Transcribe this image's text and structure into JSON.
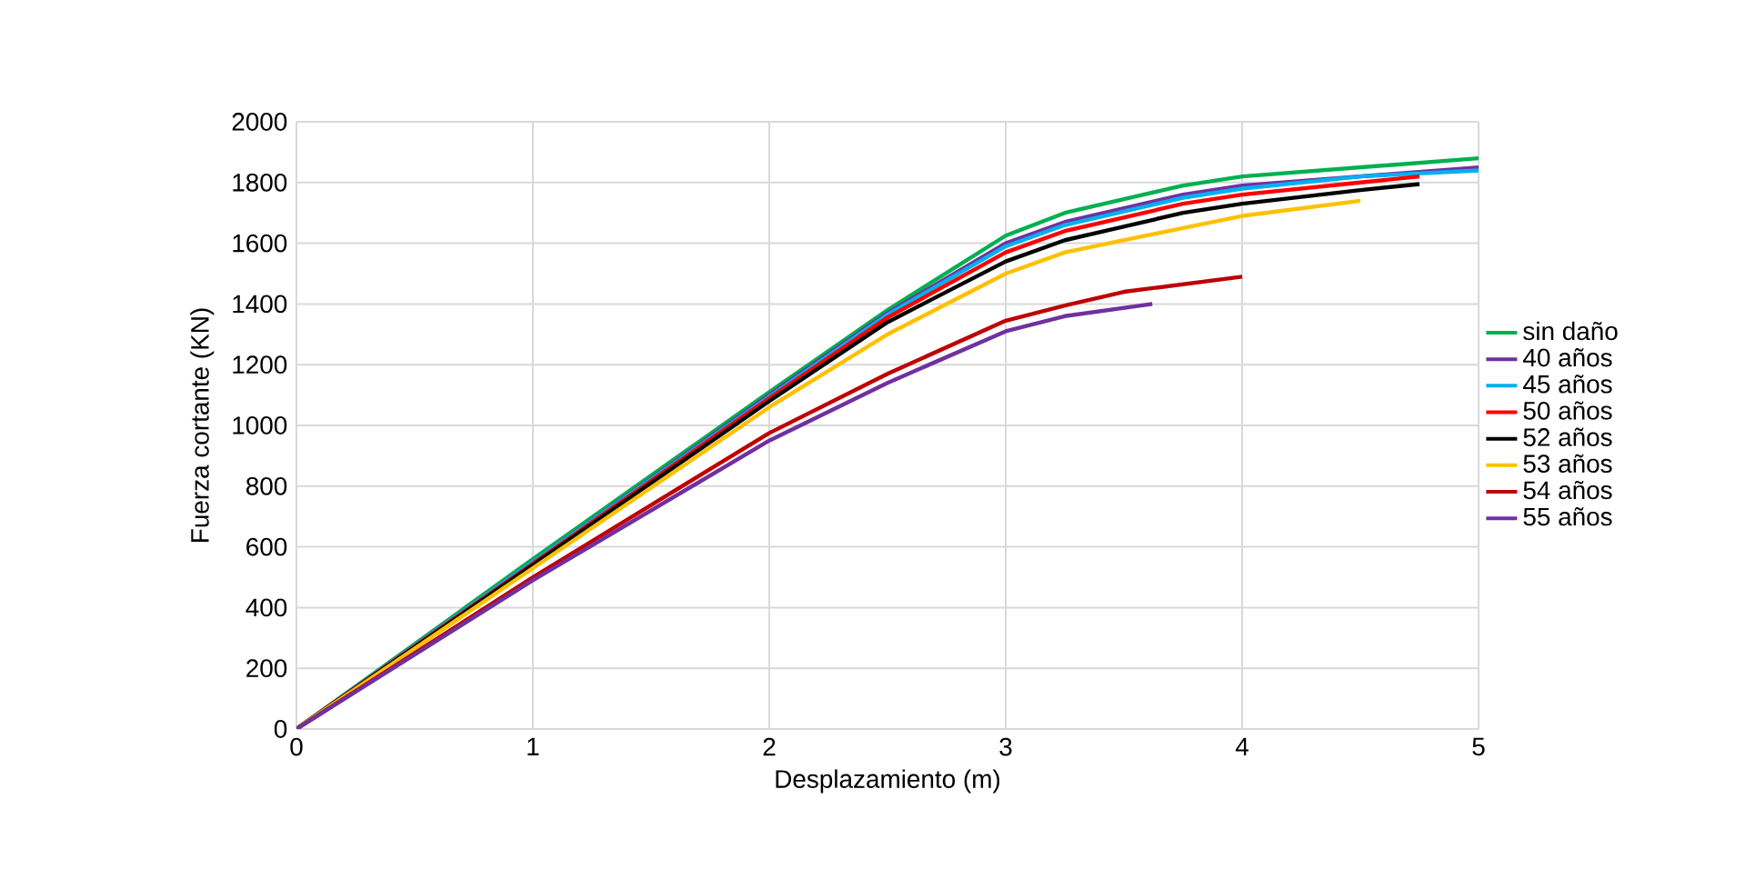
{
  "chart_data": {
    "type": "line",
    "xlabel": "Desplazamiento (m)",
    "ylabel": "Fuerza cortante (KN)",
    "xlim": [
      0,
      5
    ],
    "ylim": [
      0,
      2000
    ],
    "xticks": [
      0,
      1,
      2,
      3,
      4,
      5
    ],
    "yticks": [
      0,
      200,
      400,
      600,
      800,
      1000,
      1200,
      1400,
      1600,
      1800,
      2000
    ],
    "grid": true,
    "legend": "right",
    "marker": "none",
    "line_style": "solid",
    "series": [
      {
        "name": "sin daño",
        "color": "#00b050",
        "x": [
          0,
          1,
          2,
          2.5,
          3,
          3.25,
          3.75,
          4,
          5
        ],
        "values": [
          0,
          560,
          1110,
          1380,
          1625,
          1700,
          1790,
          1820,
          1880
        ]
      },
      {
        "name": "40 años",
        "color": "#7030a0",
        "x": [
          0,
          1,
          2,
          2.5,
          3,
          3.25,
          3.75,
          4,
          5
        ],
        "values": [
          0,
          550,
          1100,
          1370,
          1600,
          1670,
          1760,
          1790,
          1850
        ]
      },
      {
        "name": "45 años",
        "color": "#00b0f0",
        "x": [
          0,
          1,
          2,
          2.5,
          3,
          3.25,
          3.75,
          4,
          4.5,
          5
        ],
        "values": [
          0,
          550,
          1095,
          1365,
          1590,
          1660,
          1750,
          1780,
          1820,
          1840
        ]
      },
      {
        "name": "50 años",
        "color": "#ff0000",
        "x": [
          0,
          1,
          2,
          2.5,
          3,
          3.25,
          3.75,
          4,
          4.5,
          4.75
        ],
        "values": [
          0,
          545,
          1090,
          1355,
          1570,
          1640,
          1730,
          1760,
          1800,
          1820
        ]
      },
      {
        "name": "52 años",
        "color": "#000000",
        "x": [
          0,
          1,
          2,
          2.5,
          3,
          3.25,
          3.75,
          4,
          4.5,
          4.75
        ],
        "values": [
          0,
          540,
          1080,
          1340,
          1540,
          1610,
          1700,
          1730,
          1775,
          1795
        ]
      },
      {
        "name": "53 años",
        "color": "#ffc000",
        "x": [
          0,
          1,
          2,
          2.5,
          3,
          3.25,
          3.75,
          4,
          4.5
        ],
        "values": [
          0,
          530,
          1060,
          1300,
          1500,
          1570,
          1650,
          1690,
          1740
        ]
      },
      {
        "name": "54 años",
        "color": "#c00000",
        "x": [
          0,
          1,
          2,
          2.5,
          3,
          3.25,
          3.5,
          4
        ],
        "values": [
          0,
          500,
          975,
          1170,
          1345,
          1395,
          1440,
          1490
        ]
      },
      {
        "name": "55 años",
        "color": "#7030a0",
        "x": [
          0,
          1,
          2,
          2.5,
          3,
          3.25,
          3.62
        ],
        "values": [
          0,
          490,
          950,
          1140,
          1310,
          1360,
          1400
        ]
      }
    ]
  }
}
